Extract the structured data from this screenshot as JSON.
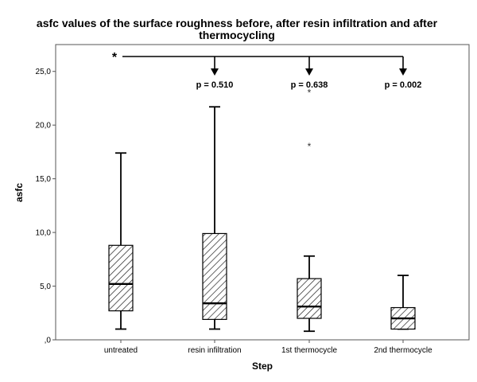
{
  "chart_data": {
    "type": "box",
    "title_line1": "asfc values of the surface roughness before, after resin infiltration and after",
    "title_line2": "thermocycling",
    "xlabel": "Step",
    "ylabel": "asfc",
    "ylim": [
      0,
      27.5
    ],
    "yticks": [
      {
        "value": 0,
        "label": ",0"
      },
      {
        "value": 5,
        "label": "5,0"
      },
      {
        "value": 10,
        "label": "10,0"
      },
      {
        "value": 15,
        "label": "15,0"
      },
      {
        "value": 20,
        "label": "20,0"
      },
      {
        "value": 25,
        "label": "25,0"
      }
    ],
    "categories": [
      "untreated",
      "resin infiltration",
      "1st thermocycle",
      "2nd thermocycle"
    ],
    "boxes": [
      {
        "category": "untreated",
        "whisker_low": 1.0,
        "q1": 2.7,
        "median": 5.2,
        "q3": 8.8,
        "whisker_high": 17.4,
        "outliers": []
      },
      {
        "category": "resin infiltration",
        "whisker_low": 1.0,
        "q1": 1.9,
        "median": 3.4,
        "q3": 9.9,
        "whisker_high": 21.7,
        "outliers": []
      },
      {
        "category": "1st thermocycle",
        "whisker_low": 0.8,
        "q1": 2.0,
        "median": 3.1,
        "q3": 5.7,
        "whisker_high": 7.8,
        "outliers": [
          18.1,
          23.1
        ]
      },
      {
        "category": "2nd thermocycle",
        "whisker_low": 1.0,
        "q1": 1.0,
        "median": 2.0,
        "q3": 3.0,
        "whisker_high": 6.0,
        "outliers": []
      }
    ],
    "significance": {
      "marker": "*",
      "comparisons": [
        {
          "target": "resin infiltration",
          "label": "p = 0.510"
        },
        {
          "target": "1st thermocycle",
          "label": "p = 0.638"
        },
        {
          "target": "2nd thermocycle",
          "label": "p = 0.002"
        }
      ]
    },
    "box_fill": "hatched",
    "grid": false,
    "legend": "none"
  }
}
